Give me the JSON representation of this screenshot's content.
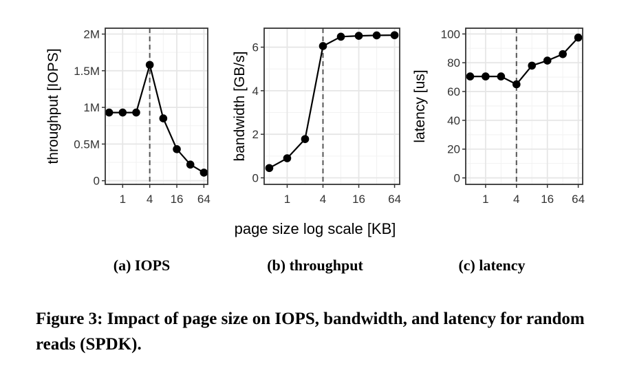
{
  "figure": {
    "shared_xlabel": "page size log scale [KB]",
    "subcaptions": [
      "(a) IOPS",
      "(b) throughput",
      "(c) latency"
    ],
    "caption": "Figure 3: Impact of page size on IOPS, bandwidth, and latency for random reads (SPDK)."
  },
  "chart_data": [
    {
      "type": "line",
      "ylabel": "throughput [IOPS]",
      "x_scale": "log2",
      "x": [
        0.5,
        1,
        2,
        4,
        8,
        16,
        32,
        64
      ],
      "xticks": [
        1,
        4,
        16,
        64
      ],
      "xtick_labels": [
        "1",
        "4",
        "16",
        "64"
      ],
      "xlim": [
        0.41,
        78
      ],
      "series": [
        {
          "values": [
            930000,
            930000,
            930000,
            1580000,
            850000,
            430000,
            220000,
            110000
          ]
        }
      ],
      "yticks": [
        0,
        500000,
        1000000,
        1500000,
        2000000
      ],
      "ytick_labels": [
        "0",
        "0.5M",
        "1M",
        "1.5M",
        "2M"
      ],
      "ylim": [
        -50000,
        2080000
      ],
      "vline_x": 4,
      "grid": true,
      "color": "#000000"
    },
    {
      "type": "line",
      "ylabel": "bandwidth [GB/s]",
      "x_scale": "log2",
      "x": [
        0.5,
        1,
        2,
        4,
        8,
        16,
        32,
        64
      ],
      "xticks": [
        1,
        4,
        16,
        64
      ],
      "xtick_labels": [
        "1",
        "4",
        "16",
        "64"
      ],
      "xlim": [
        0.41,
        78
      ],
      "series": [
        {
          "values": [
            0.45,
            0.9,
            1.78,
            6.05,
            6.48,
            6.52,
            6.54,
            6.55
          ]
        }
      ],
      "yticks": [
        0,
        2,
        4,
        6
      ],
      "ytick_labels": [
        "0",
        "2",
        "4",
        "6"
      ],
      "ylim": [
        -0.3,
        6.87
      ],
      "vline_x": 4,
      "grid": true,
      "color": "#000000"
    },
    {
      "type": "line",
      "ylabel": "latency [us]",
      "x_scale": "log2",
      "x": [
        0.5,
        1,
        2,
        4,
        8,
        16,
        32,
        64
      ],
      "xticks": [
        1,
        4,
        16,
        64
      ],
      "xtick_labels": [
        "1",
        "4",
        "16",
        "64"
      ],
      "xlim": [
        0.41,
        78
      ],
      "series": [
        {
          "values": [
            70.5,
            70.5,
            70.5,
            65,
            78,
            81.5,
            86,
            97.5
          ]
        }
      ],
      "yticks": [
        0,
        20,
        40,
        60,
        80,
        100
      ],
      "ytick_labels": [
        "0",
        "20",
        "40",
        "60",
        "80",
        "100"
      ],
      "ylim": [
        -4.5,
        104
      ],
      "vline_x": 4,
      "grid": true,
      "color": "#000000"
    }
  ]
}
